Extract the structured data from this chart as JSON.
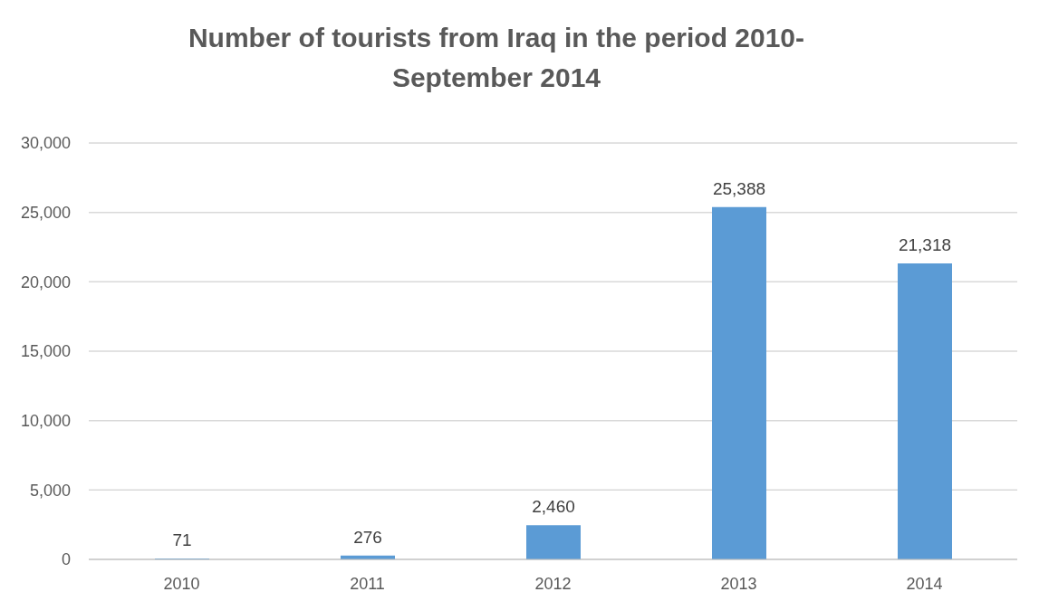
{
  "chart_data": {
    "type": "bar",
    "title": "Number of tourists from Iraq in the period 2010-September 2014",
    "categories": [
      "2010",
      "2011",
      "2012",
      "2013",
      "2014"
    ],
    "values": [
      71,
      276,
      2460,
      25388,
      21318
    ],
    "value_labels": [
      "71",
      "276",
      "2,460",
      "25,388",
      "21,318"
    ],
    "color": "#5b9bd5",
    "ylim": [
      0,
      30000
    ],
    "yticks": [
      0,
      {
        "value": 5000,
        "label": "5,000"
      },
      {
        "value": 10000,
        "label": "10,000"
      },
      {
        "value": 15000,
        "label": "15,000"
      },
      {
        "value": 20000,
        "label": "20,000"
      },
      {
        "value": 25000,
        "label": "25,000"
      },
      {
        "value": 30000,
        "label": "30,000"
      }
    ],
    "grid": "y"
  }
}
